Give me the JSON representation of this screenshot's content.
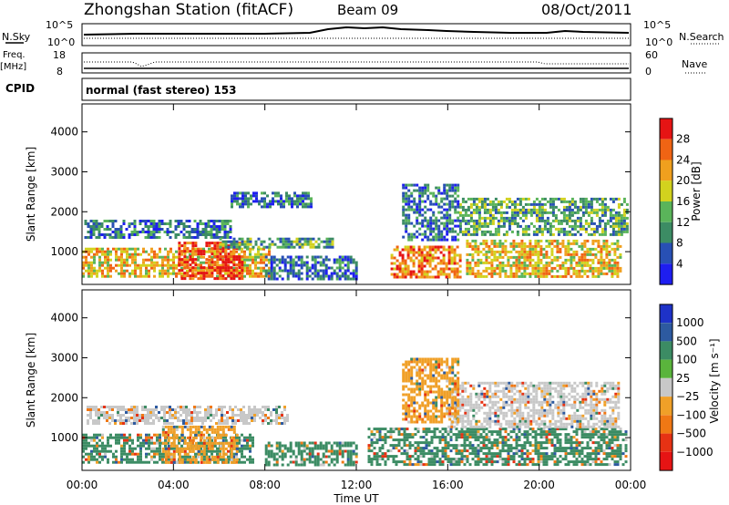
{
  "header": {
    "title": "Zhongshan Station (fitACF)",
    "beam": "Beam 09",
    "date": "08/Oct/2011"
  },
  "panels": {
    "nsky": {
      "label": "N.Sky",
      "tick_top": "10^5",
      "tick_bottom": "10^0",
      "right_label": "N.Search",
      "right_tick_top": "10^5",
      "right_tick_bottom": "10^0"
    },
    "freq": {
      "label_line1": "Freq.",
      "label_line2": "[MHz]",
      "tick_top": "18",
      "tick_bottom": "8",
      "right_label": "Nave",
      "right_tick_top": "60",
      "right_tick_bottom": "0"
    },
    "cpid": {
      "label": "CPID",
      "value": "normal (fast stereo) 153"
    }
  },
  "axes": {
    "x_ticks": [
      "00:00",
      "04:00",
      "08:00",
      "12:00",
      "16:00",
      "20:00",
      "00:00"
    ],
    "x_label": "Time UT",
    "y_ticks": [
      "1000",
      "2000",
      "3000",
      "4000"
    ],
    "y_label": "Slant Range [km]"
  },
  "colorbars": {
    "power": {
      "label": "Power [dB]",
      "ticks": [
        "4",
        "8",
        "12",
        "16",
        "20",
        "24",
        "28"
      ],
      "colors": [
        "#1e1ef0",
        "#2850b4",
        "#3c8c64",
        "#5ab45a",
        "#d2d21e",
        "#f0a01e",
        "#f06414",
        "#e61414"
      ]
    },
    "velocity": {
      "label": "Velocity [m s⁻¹]",
      "ticks": [
        "1000",
        "500",
        "100",
        "25",
        "−25",
        "−100",
        "−500",
        "−1000"
      ],
      "colors": [
        "#1e32c8",
        "#2d5aa0",
        "#3c8c64",
        "#5ab43c",
        "#c8c8c8",
        "#f0a028",
        "#f07814",
        "#e63214",
        "#e61414"
      ]
    }
  },
  "chart_data": [
    {
      "type": "heatmap",
      "title": "Power",
      "xlabel": "Time UT",
      "ylabel": "Slant Range [km]",
      "xlim": [
        "00:00",
        "24:00"
      ],
      "ylim": [
        180,
        4700
      ],
      "colorbar_label": "Power [dB]",
      "colorbar_ticks": [
        4,
        8,
        12,
        16,
        20,
        24,
        28
      ],
      "regions": [
        {
          "t0": 0.0,
          "t1": 8.2,
          "r0": 400,
          "r1": 1100,
          "level": 20
        },
        {
          "t0": 4.2,
          "t1": 7.0,
          "r0": 350,
          "r1": 1250,
          "level": 28
        },
        {
          "t0": 0.1,
          "t1": 6.5,
          "r0": 1350,
          "r1": 1800,
          "level": 8
        },
        {
          "t0": 6.0,
          "t1": 11.0,
          "r0": 1100,
          "r1": 1350,
          "level": 12
        },
        {
          "t0": 8.0,
          "t1": 12.0,
          "r0": 300,
          "r1": 900,
          "level": 8
        },
        {
          "t0": 13.5,
          "t1": 16.5,
          "r0": 350,
          "r1": 1150,
          "level": 24
        },
        {
          "t0": 16.8,
          "t1": 23.5,
          "r0": 350,
          "r1": 1300,
          "level": 20
        },
        {
          "t0": 16.5,
          "t1": 23.8,
          "r0": 1400,
          "r1": 2350,
          "level": 12
        },
        {
          "t0": 14.0,
          "t1": 16.5,
          "r0": 1300,
          "r1": 2700,
          "level": 8
        },
        {
          "t0": 6.5,
          "t1": 10.0,
          "r0": 2150,
          "r1": 2500,
          "level": 8
        }
      ]
    },
    {
      "type": "heatmap",
      "title": "Velocity",
      "xlabel": "Time UT",
      "ylabel": "Slant Range [km]",
      "xlim": [
        "00:00",
        "24:00"
      ],
      "ylim": [
        180,
        4700
      ],
      "colorbar_label": "Velocity [m s⁻¹]",
      "colorbar_ticks": [
        1000,
        500,
        100,
        25,
        -25,
        -100,
        -500,
        -1000
      ],
      "regions": [
        {
          "t0": 0.0,
          "t1": 7.5,
          "r0": 400,
          "r1": 1100,
          "level": 100
        },
        {
          "t0": 3.5,
          "t1": 6.8,
          "r0": 350,
          "r1": 1300,
          "level": -100
        },
        {
          "t0": 0.2,
          "t1": 9.0,
          "r0": 1350,
          "r1": 1800,
          "level": 0
        },
        {
          "t0": 8.0,
          "t1": 12.0,
          "r0": 300,
          "r1": 900,
          "level": 100
        },
        {
          "t0": 12.5,
          "t1": 23.8,
          "r0": 350,
          "r1": 1250,
          "level": 100
        },
        {
          "t0": 16.0,
          "t1": 23.5,
          "r0": 1300,
          "r1": 2400,
          "level": 0
        },
        {
          "t0": 14.0,
          "t1": 16.5,
          "r0": 1400,
          "r1": 3000,
          "level": -100
        }
      ]
    }
  ]
}
